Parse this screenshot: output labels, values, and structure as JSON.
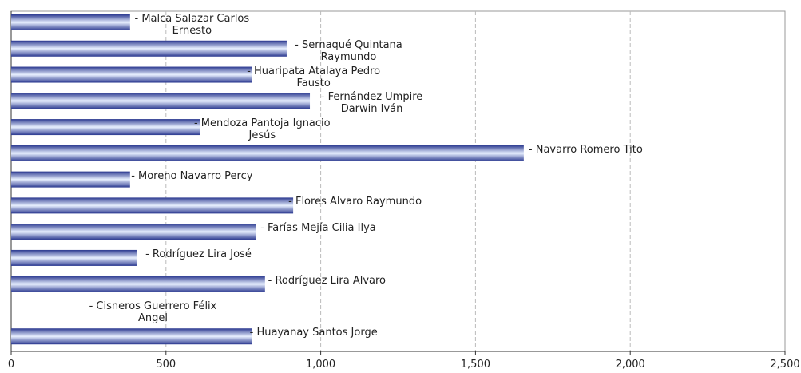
{
  "chart_data": {
    "type": "barh",
    "categories": [
      "- Malca Salazar Carlos Ernesto",
      "- Sernaqué Quintana Raymundo",
      "- Huaripata Atalaya Pedro Fausto",
      "- Fernández Umpire Darwin Iván",
      "- Mendoza Pantoja Ignacio Jesús",
      "- Navarro Romero Tito",
      "- Moreno Navarro Percy",
      "- Flores  Alvaro Raymundo",
      "- Farías Mejía Cilia Ilya",
      "- Rodríguez Lira José",
      "- Rodríguez Lira Alvaro",
      "- Cisneros Guerrero Félix Angel",
      "- Huayanay Santos Jorge"
    ],
    "values": [
      384,
      890,
      777,
      965,
      611,
      1656,
      384,
      911,
      792,
      405,
      820,
      null,
      777
    ],
    "color": "#2b3990",
    "xlim": [
      0,
      2500
    ],
    "xticks": [
      0,
      500,
      {
        "value": 1000,
        "label": "1,000"
      },
      {
        "value": 1500,
        "label": "1,500"
      },
      {
        "value": 2000,
        "label": "2,000"
      },
      {
        "value": 2500,
        "label": "2,500"
      }
    ],
    "grid": true
  }
}
